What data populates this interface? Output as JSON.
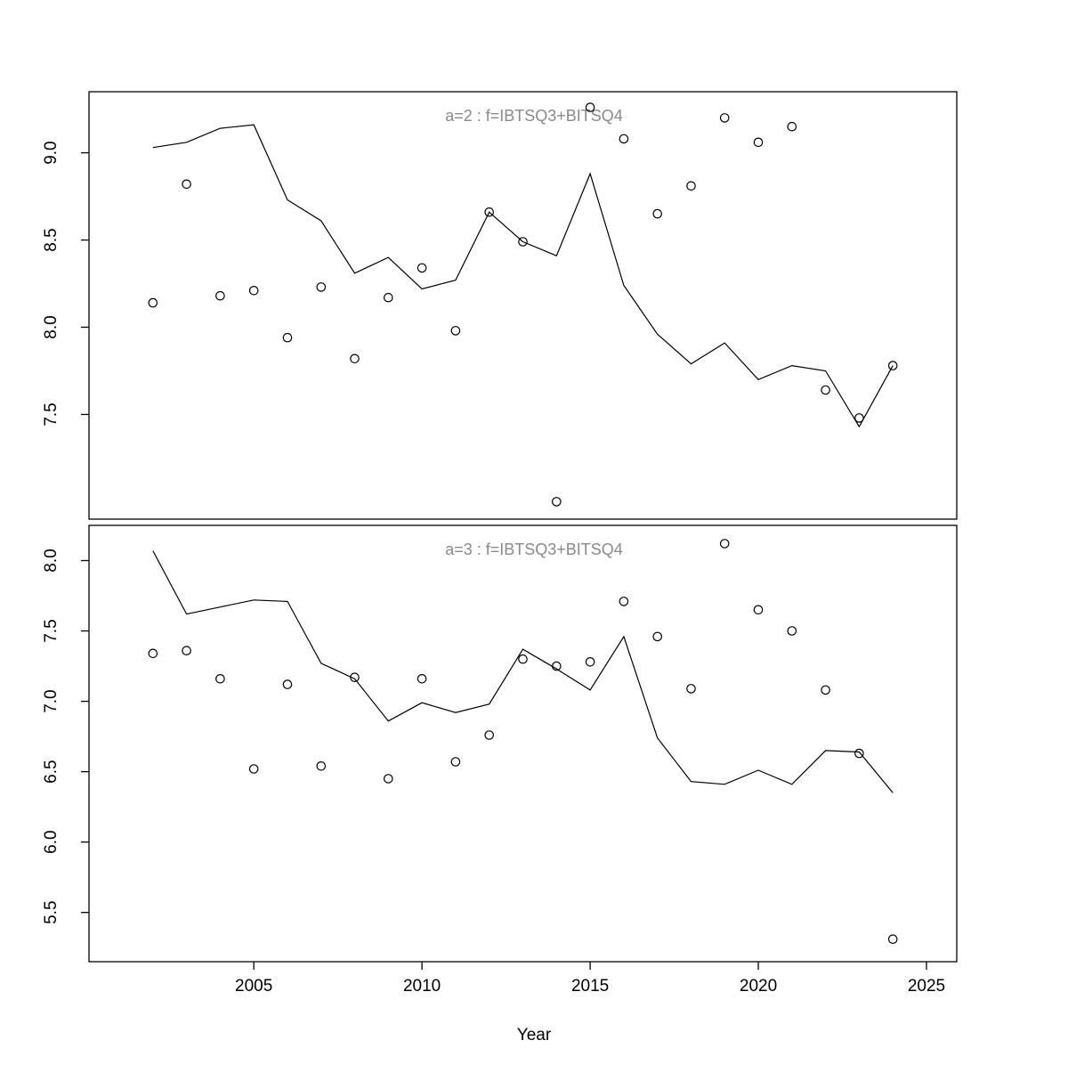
{
  "xlabel": "Year",
  "chart_data": [
    {
      "type": "line",
      "title": "a=2 : f=IBTSQ3+BITSQ4",
      "xlabel": "Year",
      "x": [
        2002,
        2003,
        2004,
        2005,
        2006,
        2007,
        2008,
        2009,
        2010,
        2011,
        2012,
        2013,
        2014,
        2015,
        2016,
        2017,
        2018,
        2019,
        2020,
        2021,
        2022,
        2023,
        2024
      ],
      "series": [
        {
          "name": "model-fit-line",
          "style": "line",
          "values": [
            9.03,
            9.06,
            9.14,
            9.16,
            8.73,
            8.61,
            8.31,
            8.4,
            8.22,
            8.27,
            8.66,
            8.49,
            8.41,
            8.88,
            8.24,
            7.96,
            7.79,
            7.91,
            7.7,
            7.78,
            7.75,
            7.43,
            7.78
          ]
        },
        {
          "name": "observations",
          "style": "points",
          "values": [
            8.14,
            8.82,
            8.18,
            8.21,
            7.94,
            8.23,
            7.82,
            8.17,
            8.34,
            7.98,
            8.66,
            8.49,
            7.0,
            9.26,
            9.08,
            8.65,
            8.81,
            9.2,
            9.06,
            9.15,
            7.64,
            7.48,
            7.78
          ]
        }
      ],
      "xlim": [
        2000.1,
        2025.9
      ],
      "ylim": [
        6.9,
        9.35
      ],
      "xticks": [
        2005,
        2010,
        2015,
        2020,
        2025
      ],
      "yticks": [
        7.5,
        8.0,
        8.5,
        9.0
      ],
      "show_x_axis": false,
      "grid": false,
      "legend": "none"
    },
    {
      "type": "line",
      "title": "a=3 : f=IBTSQ3+BITSQ4",
      "xlabel": "Year",
      "x": [
        2002,
        2003,
        2004,
        2005,
        2006,
        2007,
        2008,
        2009,
        2010,
        2011,
        2012,
        2013,
        2014,
        2015,
        2016,
        2017,
        2018,
        2019,
        2020,
        2021,
        2022,
        2023,
        2024
      ],
      "series": [
        {
          "name": "model-fit-line",
          "style": "line",
          "values": [
            8.07,
            7.62,
            7.67,
            7.72,
            7.71,
            7.27,
            7.16,
            6.86,
            6.99,
            6.92,
            6.98,
            7.37,
            7.23,
            7.08,
            7.46,
            6.74,
            6.43,
            6.41,
            6.51,
            6.41,
            6.65,
            6.64,
            6.35
          ]
        },
        {
          "name": "observations",
          "style": "points",
          "values": [
            7.34,
            7.36,
            7.16,
            6.52,
            7.12,
            6.54,
            7.17,
            6.45,
            7.16,
            6.57,
            6.76,
            7.3,
            7.25,
            7.28,
            7.71,
            7.46,
            7.09,
            8.12,
            7.65,
            7.5,
            7.08,
            6.63,
            5.31
          ]
        }
      ],
      "xlim": [
        2000.1,
        2025.9
      ],
      "ylim": [
        5.15,
        8.25
      ],
      "xticks": [
        2005,
        2010,
        2015,
        2020,
        2025
      ],
      "yticks": [
        5.5,
        6.0,
        6.5,
        7.0,
        7.5,
        8.0
      ],
      "show_x_axis": true,
      "grid": false,
      "legend": "none"
    }
  ],
  "colors": {
    "line": "#000000",
    "point_stroke": "#000000",
    "title_gray": "#8a8a8a",
    "background": "#ffffff"
  }
}
